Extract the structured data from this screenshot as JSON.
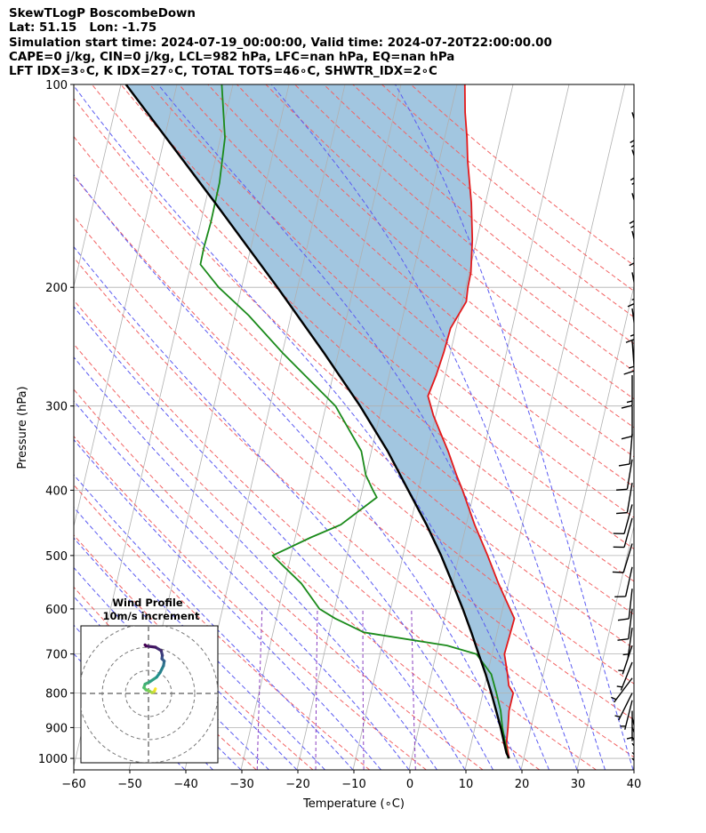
{
  "header": {
    "line1": "SkewTLogP BoscombeDown",
    "line2": "Lat: 51.15   Lon: -1.75",
    "line3": "Simulation start time: 2024-07-19_00:00:00, Valid time: 2024-07-20T22:00:00.00",
    "line4": "CAPE=0 j/kg, CIN=0 j/kg, LCL=982 hPa, LFC=nan hPa, EQ=nan hPa",
    "line5": "LFT IDX=3∘C, K IDX=27∘C, TOTAL TOTS=46∘C, SHWTR_IDX=2∘C"
  },
  "chart_data": {
    "type": "line",
    "xlabel": "Temperature (∘C)",
    "ylabel": "Pressure (hPa)",
    "xlim": [
      -60,
      40
    ],
    "ylim": [
      1040,
      100
    ],
    "y_scale": "log",
    "x_ticks": [
      -60,
      -50,
      -40,
      -30,
      -20,
      -10,
      0,
      10,
      20,
      30,
      40
    ],
    "y_ticks": [
      1000,
      900,
      800,
      700,
      600,
      500,
      400,
      300,
      200,
      100
    ],
    "grid": true,
    "colors": {
      "temperature": "#e31a1c",
      "dewpoint": "#1a8a1a",
      "parcel": "#000000",
      "cape_fill": "#a2c6e0",
      "dry_adiabat": "#f26363",
      "moist_adiabat": "#5a5af2",
      "mixing_ratio": "#8a3fc0"
    },
    "series": [
      {
        "key": "temperature",
        "p": [
          1000,
          950,
          900,
          850,
          800,
          780,
          750,
          700,
          650,
          620,
          600,
          550,
          500,
          450,
          400,
          380,
          350,
          330,
          310,
          290,
          270,
          250,
          230,
          210,
          200,
          190,
          170,
          150,
          130,
          120,
          110,
          100
        ],
        "t": [
          17.4,
          16.3,
          15.9,
          15.4,
          15.4,
          14.3,
          13.6,
          12.2,
          12.4,
          12.5,
          11.3,
          8.2,
          5.1,
          1.5,
          -2.1,
          -3.8,
          -6.3,
          -8.3,
          -10.4,
          -12.2,
          -11.6,
          -11.2,
          -11.0,
          -9.3,
          -9.6,
          -9.7,
          -10.8,
          -12.5,
          -14.9,
          -16.0,
          -17.4,
          -18.6
        ]
      },
      {
        "key": "dewpoint",
        "p": [
          1000,
          950,
          900,
          850,
          800,
          750,
          700,
          680,
          650,
          620,
          600,
          550,
          500,
          470,
          450,
          410,
          400,
          380,
          350,
          300,
          250,
          220,
          200,
          185,
          175,
          160,
          140,
          120,
          100
        ],
        "t": [
          17.2,
          16.1,
          14.9,
          13.9,
          12.4,
          10.7,
          7.2,
          1.6,
          -13.8,
          -19.5,
          -22.7,
          -27.0,
          -33.3,
          -27.2,
          -22.4,
          -17.1,
          -18.1,
          -20.0,
          -21.8,
          -28.3,
          -40.0,
          -47.6,
          -54.1,
          -58.3,
          -58.4,
          -58.2,
          -58.3,
          -59.2,
          -62.0
        ]
      },
      {
        "key": "parcel",
        "p": [
          1000,
          982,
          950,
          900,
          850,
          800,
          750,
          700,
          650,
          600,
          550,
          500,
          450,
          400,
          350,
          300,
          250,
          200,
          150,
          100
        ],
        "t": [
          17.4,
          16.7,
          15.9,
          14.6,
          13.1,
          11.5,
          9.7,
          7.6,
          5.4,
          2.9,
          0.0,
          -3.2,
          -7.1,
          -11.8,
          -17.1,
          -23.9,
          -32.6,
          -43.6,
          -58.2,
          -79.1
        ]
      }
    ],
    "wind_barbs": {
      "p": [
        1000,
        980,
        950,
        930,
        900,
        870,
        850,
        820,
        800,
        760,
        720,
        680,
        640,
        600,
        560,
        520,
        480,
        440,
        420,
        390,
        360,
        330,
        300,
        270,
        240,
        215,
        190,
        165,
        145,
        125,
        110
      ],
      "u": [
        -3,
        -4,
        -4,
        -3,
        -2,
        -1,
        0,
        1,
        2,
        3,
        2,
        2,
        1,
        1,
        1,
        2,
        3,
        3,
        3,
        2,
        2,
        1,
        0,
        0,
        -1,
        -2,
        -3,
        -4,
        -5,
        -6,
        -6
      ],
      "v": [
        3,
        4,
        5,
        5,
        5,
        4,
        4,
        4,
        4,
        4,
        5,
        6,
        7,
        8,
        9,
        9,
        10,
        11,
        11,
        12,
        12,
        12,
        12,
        13,
        14,
        15,
        16,
        17,
        18,
        19,
        20
      ]
    },
    "hodograph": {
      "title_line1": "Wind Profile",
      "title_line2": "10m/s increment",
      "rings": [
        10,
        20,
        30
      ],
      "u": [
        3.0,
        2.5,
        1.5,
        0.5,
        -1.0,
        -2.0,
        -1.5,
        0.5,
        3.5,
        5.0,
        6.5,
        6.8,
        5.8,
        6.0,
        5.5,
        3.0,
        -1.0,
        -1.5
      ],
      "v": [
        2.0,
        0.8,
        0.3,
        1.0,
        1.5,
        2.5,
        4.0,
        5.0,
        7.0,
        9.0,
        12.0,
        14.0,
        15.0,
        16.5,
        18.5,
        20.0,
        20.5,
        21.0
      ]
    }
  }
}
